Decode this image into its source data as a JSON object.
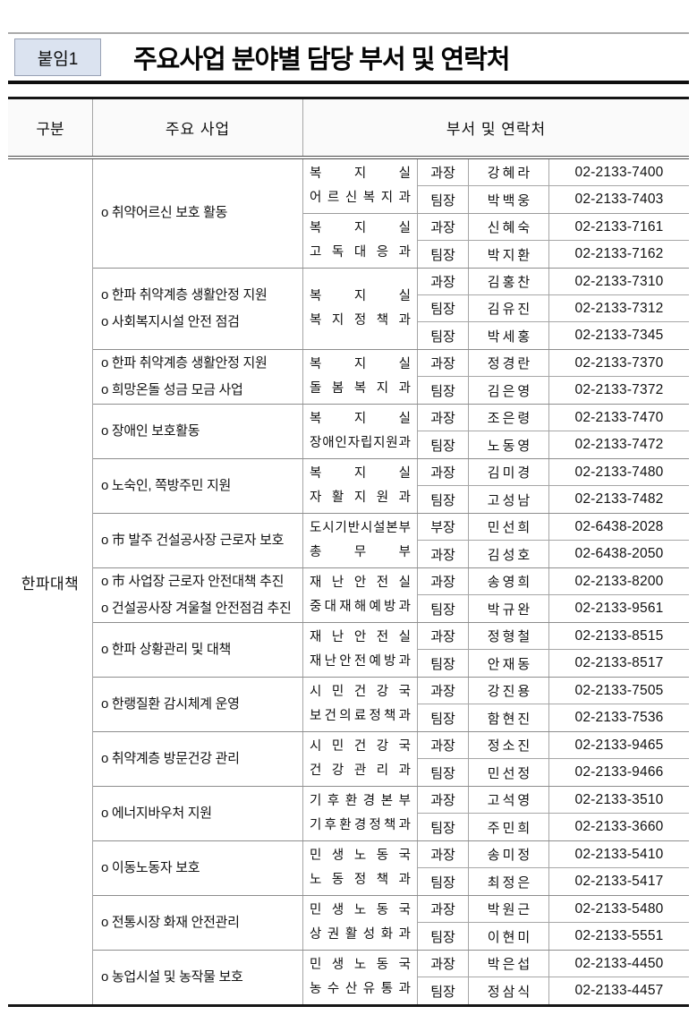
{
  "attachment_label": "붙임1",
  "page_title": "주요사업 분야별 담당 부서 및 연락처",
  "table": {
    "headers": {
      "category": "구분",
      "business": "주요 사업",
      "contact": "부서 및 연락처"
    },
    "category": "한파대책",
    "groups": [
      {
        "business_items": [
          "o 취약어르신 보호 활동"
        ],
        "dept_blocks": [
          {
            "dept_lines": [
              "복지실",
              "어르신복지과"
            ],
            "rows": [
              {
                "position": "과장",
                "name": "강혜라",
                "phone": "02-2133-7400"
              },
              {
                "position": "팀장",
                "name": "박백웅",
                "phone": "02-2133-7403"
              }
            ]
          },
          {
            "dept_lines": [
              "복지실",
              "고독대응과"
            ],
            "rows": [
              {
                "position": "과장",
                "name": "신혜숙",
                "phone": "02-2133-7161"
              },
              {
                "position": "팀장",
                "name": "박지환",
                "phone": "02-2133-7162"
              }
            ]
          }
        ]
      },
      {
        "business_items": [
          "o 한파 취약계층 생활안정 지원",
          "o 사회복지시설 안전 점검"
        ],
        "dept_blocks": [
          {
            "dept_lines": [
              "복지실",
              "복지정책과"
            ],
            "rows": [
              {
                "position": "과장",
                "name": "김홍찬",
                "phone": "02-2133-7310"
              },
              {
                "position": "팀장",
                "name": "김유진",
                "phone": "02-2133-7312"
              },
              {
                "position": "팀장",
                "name": "박세홍",
                "phone": "02-2133-7345"
              }
            ]
          }
        ]
      },
      {
        "business_items": [
          "o 한파 취약계층 생활안정 지원",
          "o 희망온돌 성금 모금 사업"
        ],
        "dept_blocks": [
          {
            "dept_lines": [
              "복지실",
              "돌봄복지과"
            ],
            "rows": [
              {
                "position": "과장",
                "name": "정경란",
                "phone": "02-2133-7370"
              },
              {
                "position": "팀장",
                "name": "김은영",
                "phone": "02-2133-7372"
              }
            ]
          }
        ]
      },
      {
        "business_items": [
          "o 장애인 보호활동"
        ],
        "dept_blocks": [
          {
            "dept_lines": [
              "복지실",
              "장애인자립지원과"
            ],
            "rows": [
              {
                "position": "과장",
                "name": "조은령",
                "phone": "02-2133-7470"
              },
              {
                "position": "팀장",
                "name": "노동영",
                "phone": "02-2133-7472"
              }
            ]
          }
        ]
      },
      {
        "business_items": [
          "o 노숙인, 쪽방주민 지원"
        ],
        "dept_blocks": [
          {
            "dept_lines": [
              "복지실",
              "자활지원과"
            ],
            "rows": [
              {
                "position": "과장",
                "name": "김미경",
                "phone": "02-2133-7480"
              },
              {
                "position": "팀장",
                "name": "고성남",
                "phone": "02-2133-7482"
              }
            ]
          }
        ]
      },
      {
        "business_items": [
          "o 市 발주 건설공사장 근로자 보호"
        ],
        "dept_blocks": [
          {
            "dept_lines": [
              "도시기반시설본부",
              "총무부"
            ],
            "rows": [
              {
                "position": "부장",
                "name": "민선희",
                "phone": "02-6438-2028"
              },
              {
                "position": "과장",
                "name": "김성호",
                "phone": "02-6438-2050"
              }
            ]
          }
        ]
      },
      {
        "business_items": [
          "o 市 사업장 근로자 안전대책 추진",
          "o 건설공사장 겨울철 안전점검 추진"
        ],
        "dept_blocks": [
          {
            "dept_lines": [
              "재난안전실",
              "중대재해예방과"
            ],
            "rows": [
              {
                "position": "과장",
                "name": "송영희",
                "phone": "02-2133-8200"
              },
              {
                "position": "팀장",
                "name": "박규완",
                "phone": "02-2133-9561"
              }
            ]
          }
        ]
      },
      {
        "business_items": [
          "o 한파 상황관리 및 대책"
        ],
        "dept_blocks": [
          {
            "dept_lines": [
              "재난안전실",
              "재난안전예방과"
            ],
            "rows": [
              {
                "position": "과장",
                "name": "정형철",
                "phone": "02-2133-8515"
              },
              {
                "position": "팀장",
                "name": "안재동",
                "phone": "02-2133-8517"
              }
            ]
          }
        ]
      },
      {
        "business_items": [
          "o 한랭질환 감시체계 운영"
        ],
        "dept_blocks": [
          {
            "dept_lines": [
              "시민건강국",
              "보건의료정책과"
            ],
            "rows": [
              {
                "position": "과장",
                "name": "강진용",
                "phone": "02-2133-7505"
              },
              {
                "position": "팀장",
                "name": "함현진",
                "phone": "02-2133-7536"
              }
            ]
          }
        ]
      },
      {
        "business_items": [
          "o 취약계층 방문건강 관리"
        ],
        "dept_blocks": [
          {
            "dept_lines": [
              "시민건강국",
              "건강관리과"
            ],
            "rows": [
              {
                "position": "과장",
                "name": "정소진",
                "phone": "02-2133-9465"
              },
              {
                "position": "팀장",
                "name": "민선정",
                "phone": "02-2133-9466"
              }
            ]
          }
        ]
      },
      {
        "business_items": [
          "o 에너지바우처 지원"
        ],
        "dept_blocks": [
          {
            "dept_lines": [
              "기후환경본부",
              "기후환경정책과"
            ],
            "rows": [
              {
                "position": "과장",
                "name": "고석영",
                "phone": "02-2133-3510"
              },
              {
                "position": "팀장",
                "name": "주민희",
                "phone": "02-2133-3660"
              }
            ]
          }
        ]
      },
      {
        "business_items": [
          "o 이동노동자 보호"
        ],
        "dept_blocks": [
          {
            "dept_lines": [
              "민생노동국",
              "노동정책과"
            ],
            "rows": [
              {
                "position": "과장",
                "name": "송미정",
                "phone": "02-2133-5410"
              },
              {
                "position": "팀장",
                "name": "최정은",
                "phone": "02-2133-5417"
              }
            ]
          }
        ]
      },
      {
        "business_items": [
          "o 전통시장 화재 안전관리"
        ],
        "dept_blocks": [
          {
            "dept_lines": [
              "민생노동국",
              "상권활성화과"
            ],
            "rows": [
              {
                "position": "과장",
                "name": "박원근",
                "phone": "02-2133-5480"
              },
              {
                "position": "팀장",
                "name": "이현미",
                "phone": "02-2133-5551"
              }
            ]
          }
        ]
      },
      {
        "business_items": [
          "o 농업시설 및 농작물 보호"
        ],
        "dept_blocks": [
          {
            "dept_lines": [
              "민생노동국",
              "농수산유통과"
            ],
            "rows": [
              {
                "position": "과장",
                "name": "박은섭",
                "phone": "02-2133-4450"
              },
              {
                "position": "팀장",
                "name": "정삼식",
                "phone": "02-2133-4457"
              }
            ]
          }
        ]
      }
    ]
  },
  "colors": {
    "attachment_box_bg": "#dbe3f0",
    "attachment_box_border": "#98a1b4",
    "table_outer_border": "#161616",
    "table_inner_border": "#a6a6a6",
    "text": "#111111"
  }
}
